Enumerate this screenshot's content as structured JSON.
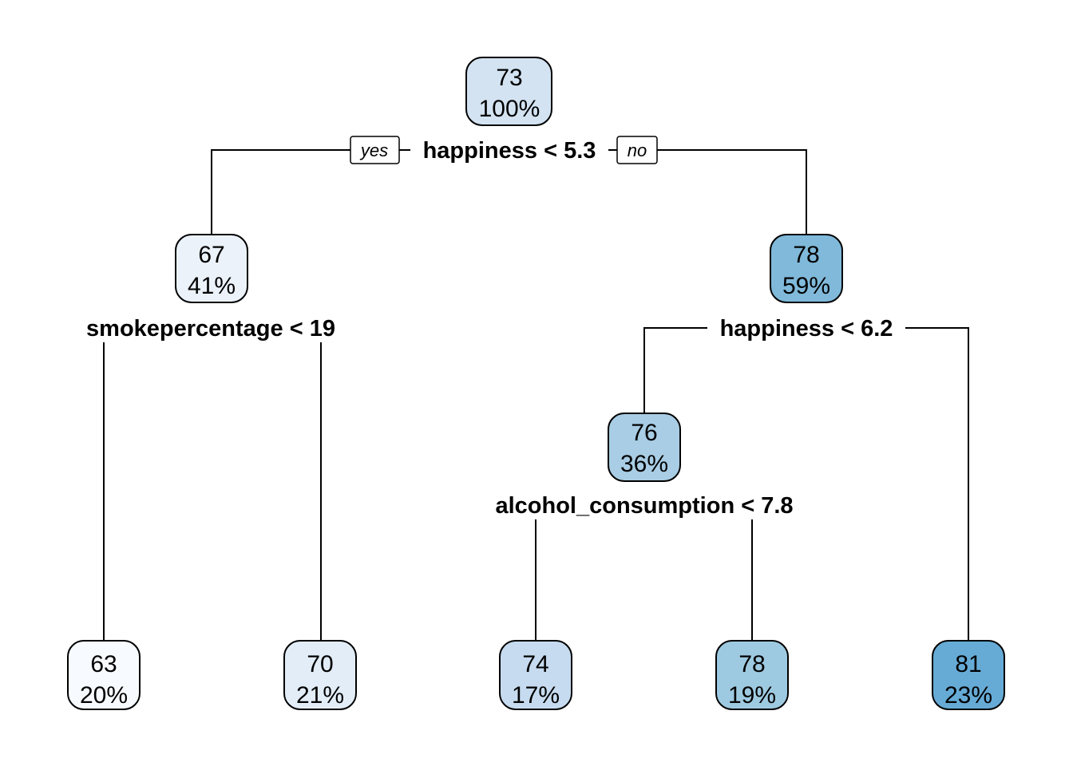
{
  "tree": {
    "branch_labels": {
      "left": "yes",
      "right": "no"
    },
    "nodes": [
      {
        "id": "n1",
        "value": "73",
        "percent": "100%",
        "fill": "#d3e3f2"
      },
      {
        "id": "n2",
        "value": "67",
        "percent": "41%",
        "fill": "#ebf2fa"
      },
      {
        "id": "n3",
        "value": "78",
        "percent": "59%",
        "fill": "#80b9da"
      },
      {
        "id": "n6",
        "value": "76",
        "percent": "36%",
        "fill": "#a8cde4"
      },
      {
        "id": "n4",
        "value": "63",
        "percent": "20%",
        "fill": "#f7fbff"
      },
      {
        "id": "n5",
        "value": "70",
        "percent": "21%",
        "fill": "#e2edf8"
      },
      {
        "id": "n12",
        "value": "74",
        "percent": "17%",
        "fill": "#c6dbef"
      },
      {
        "id": "n13",
        "value": "78",
        "percent": "19%",
        "fill": "#9ecae1"
      },
      {
        "id": "n7",
        "value": "81",
        "percent": "23%",
        "fill": "#66abd6"
      }
    ],
    "splits": [
      {
        "id": "s1",
        "label": "happiness < 5.3"
      },
      {
        "id": "s2",
        "label": "smokepercentage < 19"
      },
      {
        "id": "s3",
        "label": "happiness < 6.2"
      },
      {
        "id": "s6",
        "label": "alcohol_consumption < 7.8"
      }
    ]
  }
}
